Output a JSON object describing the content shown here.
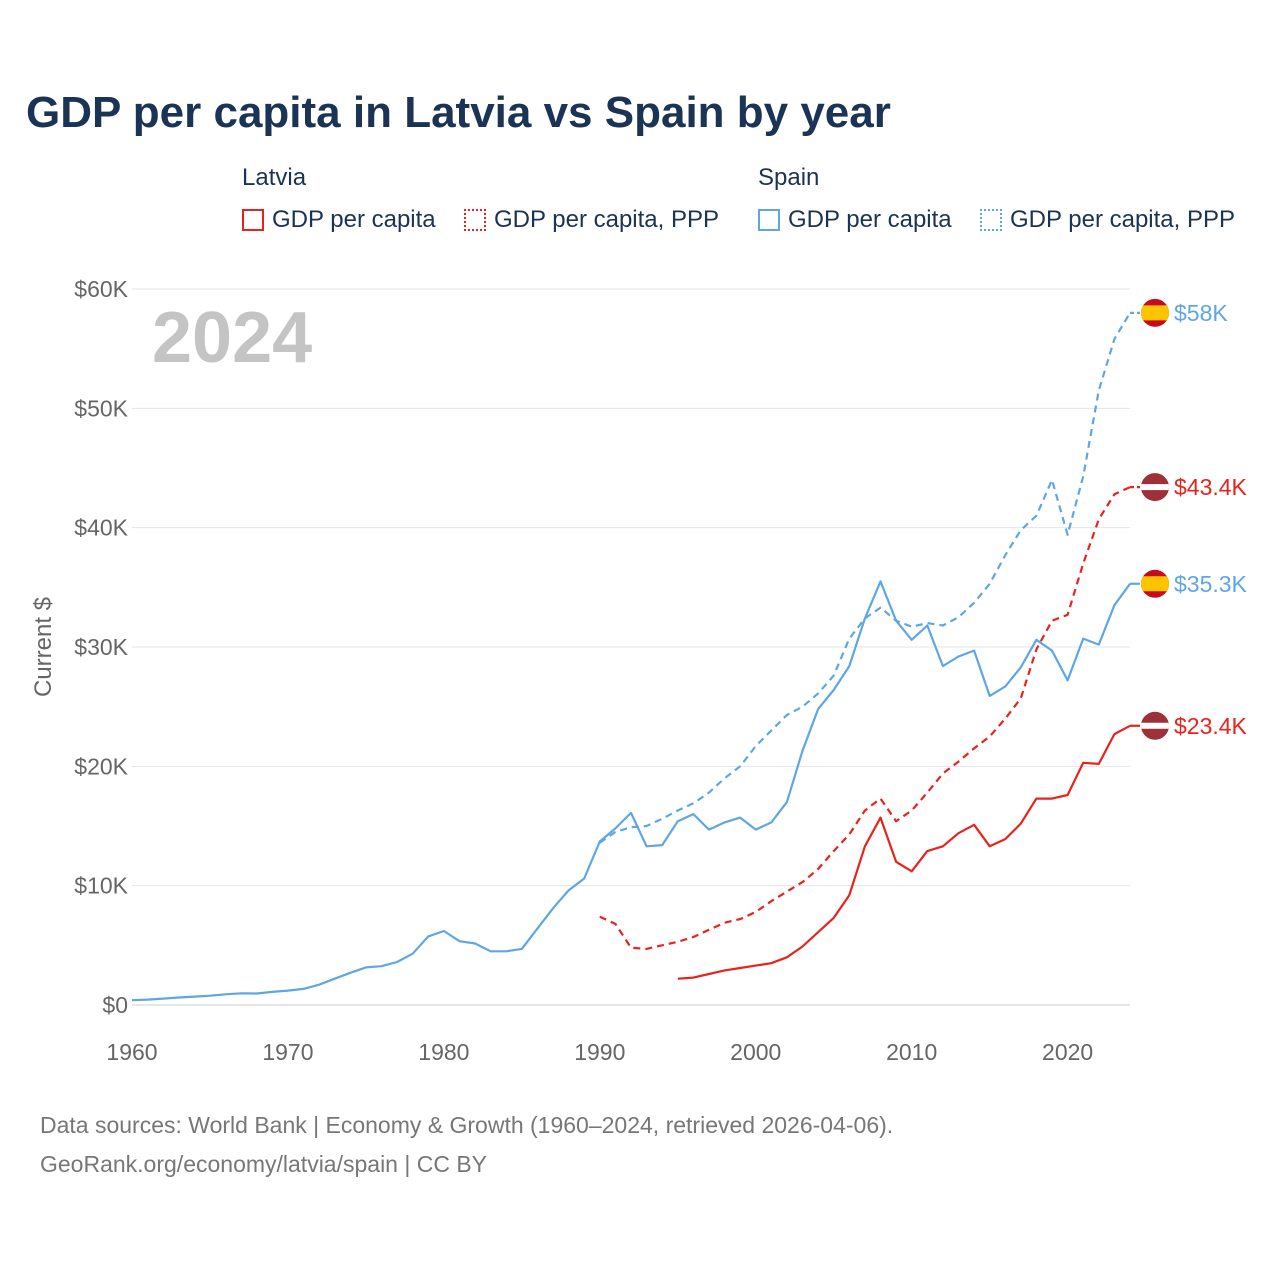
{
  "title": "GDP per capita in Latvia vs Spain by year",
  "colors": {
    "latvia": "#e8221c",
    "spain": "#5fa6e4",
    "title": "#1b3354",
    "axis": "#666666",
    "grid": "#e5e5e5",
    "year": "#c4c4c4"
  },
  "legend": {
    "groups": [
      {
        "title": "Latvia",
        "items": [
          "GDP per capita",
          "GDP per capita, PPP"
        ]
      },
      {
        "title": "Spain",
        "items": [
          "GDP per capita",
          "GDP per capita, PPP"
        ]
      }
    ]
  },
  "year_label": "2024",
  "footer": {
    "line1": "Data sources: World Bank | Economy & Growth (1960–2024, retrieved 2026-04-06).",
    "line2": "GeoRank.org/economy/latvia/spain | CC BY"
  },
  "chart_data": {
    "type": "line",
    "title": "GDP per capita in Latvia vs Spain by year",
    "xlabel": "",
    "ylabel": "Current $",
    "xlim": [
      1960,
      2024
    ],
    "ylim": [
      0,
      60000
    ],
    "x_ticks": [
      1960,
      1970,
      1980,
      1990,
      2000,
      2010,
      2020
    ],
    "x_tick_labels": [
      "1960",
      "1970",
      "1980",
      "1990",
      "2000",
      "2010",
      "2020"
    ],
    "y_ticks": [
      0,
      10000,
      20000,
      30000,
      40000,
      50000,
      60000
    ],
    "y_tick_labels": [
      "$0",
      "$10K",
      "$20K",
      "$30K",
      "$40K",
      "$50K",
      "$60K"
    ],
    "grid": true,
    "series": [
      {
        "name": "Spain GDP per capita",
        "country": "Spain",
        "style": "solid",
        "color": "#5fa6e4",
        "end_label": "$35.3K",
        "points": [
          [
            1960,
            400
          ],
          [
            1961,
            450
          ],
          [
            1962,
            540
          ],
          [
            1963,
            630
          ],
          [
            1964,
            700
          ],
          [
            1965,
            780
          ],
          [
            1966,
            900
          ],
          [
            1967,
            980
          ],
          [
            1968,
            960
          ],
          [
            1969,
            1100
          ],
          [
            1970,
            1210
          ],
          [
            1971,
            1350
          ],
          [
            1972,
            1700
          ],
          [
            1973,
            2200
          ],
          [
            1974,
            2700
          ],
          [
            1975,
            3150
          ],
          [
            1976,
            3250
          ],
          [
            1977,
            3600
          ],
          [
            1978,
            4300
          ],
          [
            1979,
            5750
          ],
          [
            1980,
            6200
          ],
          [
            1981,
            5350
          ],
          [
            1982,
            5150
          ],
          [
            1983,
            4500
          ],
          [
            1984,
            4500
          ],
          [
            1985,
            4700
          ],
          [
            1986,
            6400
          ],
          [
            1987,
            8100
          ],
          [
            1988,
            9600
          ],
          [
            1989,
            10600
          ],
          [
            1990,
            13700
          ],
          [
            1991,
            14800
          ],
          [
            1992,
            16100
          ],
          [
            1993,
            13300
          ],
          [
            1994,
            13400
          ],
          [
            1995,
            15400
          ],
          [
            1996,
            16000
          ],
          [
            1997,
            14700
          ],
          [
            1998,
            15300
          ],
          [
            1999,
            15700
          ],
          [
            2000,
            14700
          ],
          [
            2001,
            15300
          ],
          [
            2002,
            17000
          ],
          [
            2003,
            21300
          ],
          [
            2004,
            24800
          ],
          [
            2005,
            26400
          ],
          [
            2006,
            28400
          ],
          [
            2007,
            32400
          ],
          [
            2008,
            35500
          ],
          [
            2009,
            32200
          ],
          [
            2010,
            30600
          ],
          [
            2011,
            31800
          ],
          [
            2012,
            28400
          ],
          [
            2013,
            29200
          ],
          [
            2014,
            29700
          ],
          [
            2015,
            25900
          ],
          [
            2016,
            26700
          ],
          [
            2017,
            28300
          ],
          [
            2018,
            30600
          ],
          [
            2019,
            29700
          ],
          [
            2020,
            27200
          ],
          [
            2021,
            30700
          ],
          [
            2022,
            30200
          ],
          [
            2023,
            33500
          ],
          [
            2024,
            35300
          ]
        ]
      },
      {
        "name": "Spain GDP per capita, PPP",
        "country": "Spain",
        "style": "dashed",
        "color": "#5fa6e4",
        "end_label": "$58K",
        "points": [
          [
            1990,
            13600
          ],
          [
            1991,
            14500
          ],
          [
            1992,
            14900
          ],
          [
            1993,
            15000
          ],
          [
            1994,
            15600
          ],
          [
            1995,
            16300
          ],
          [
            1996,
            16900
          ],
          [
            1997,
            17800
          ],
          [
            1998,
            19000
          ],
          [
            1999,
            20000
          ],
          [
            2000,
            21700
          ],
          [
            2001,
            23000
          ],
          [
            2002,
            24300
          ],
          [
            2003,
            25000
          ],
          [
            2004,
            26100
          ],
          [
            2005,
            27600
          ],
          [
            2006,
            30700
          ],
          [
            2007,
            32400
          ],
          [
            2008,
            33300
          ],
          [
            2009,
            32200
          ],
          [
            2010,
            31700
          ],
          [
            2011,
            32000
          ],
          [
            2012,
            31800
          ],
          [
            2013,
            32500
          ],
          [
            2014,
            33700
          ],
          [
            2015,
            35300
          ],
          [
            2016,
            37700
          ],
          [
            2017,
            39800
          ],
          [
            2018,
            41000
          ],
          [
            2019,
            44000
          ],
          [
            2020,
            39400
          ],
          [
            2021,
            44300
          ],
          [
            2022,
            51500
          ],
          [
            2023,
            55800
          ],
          [
            2024,
            58000
          ]
        ]
      },
      {
        "name": "Latvia GDP per capita, PPP",
        "country": "Latvia",
        "style": "dashed",
        "color": "#e8221c",
        "end_label": "$43.4K",
        "points": [
          [
            1990,
            7400
          ],
          [
            1991,
            6800
          ],
          [
            1992,
            4800
          ],
          [
            1993,
            4700
          ],
          [
            1994,
            5000
          ],
          [
            1995,
            5300
          ],
          [
            1996,
            5700
          ],
          [
            1997,
            6300
          ],
          [
            1998,
            6900
          ],
          [
            1999,
            7200
          ],
          [
            2000,
            7800
          ],
          [
            2001,
            8700
          ],
          [
            2002,
            9500
          ],
          [
            2003,
            10300
          ],
          [
            2004,
            11400
          ],
          [
            2005,
            12900
          ],
          [
            2006,
            14300
          ],
          [
            2007,
            16300
          ],
          [
            2008,
            17300
          ],
          [
            2009,
            15400
          ],
          [
            2010,
            16300
          ],
          [
            2011,
            17800
          ],
          [
            2012,
            19400
          ],
          [
            2013,
            20400
          ],
          [
            2014,
            21500
          ],
          [
            2015,
            22500
          ],
          [
            2016,
            24000
          ],
          [
            2017,
            25700
          ],
          [
            2018,
            29800
          ],
          [
            2019,
            32200
          ],
          [
            2020,
            32700
          ],
          [
            2021,
            37000
          ],
          [
            2022,
            40700
          ],
          [
            2023,
            42800
          ],
          [
            2024,
            43400
          ]
        ]
      },
      {
        "name": "Latvia GDP per capita",
        "country": "Latvia",
        "style": "solid",
        "color": "#e8221c",
        "end_label": "$23.4K",
        "points": [
          [
            1995,
            2200
          ],
          [
            1996,
            2300
          ],
          [
            1997,
            2600
          ],
          [
            1998,
            2900
          ],
          [
            1999,
            3100
          ],
          [
            2000,
            3300
          ],
          [
            2001,
            3500
          ],
          [
            2002,
            4000
          ],
          [
            2003,
            4900
          ],
          [
            2004,
            6100
          ],
          [
            2005,
            7300
          ],
          [
            2006,
            9200
          ],
          [
            2007,
            13300
          ],
          [
            2008,
            15700
          ],
          [
            2009,
            12000
          ],
          [
            2010,
            11200
          ],
          [
            2011,
            12900
          ],
          [
            2012,
            13300
          ],
          [
            2013,
            14400
          ],
          [
            2014,
            15100
          ],
          [
            2015,
            13300
          ],
          [
            2016,
            13900
          ],
          [
            2017,
            15200
          ],
          [
            2018,
            17300
          ],
          [
            2019,
            17300
          ],
          [
            2020,
            17600
          ],
          [
            2021,
            20300
          ],
          [
            2022,
            20200
          ],
          [
            2023,
            22700
          ],
          [
            2024,
            23400
          ]
        ]
      }
    ]
  }
}
